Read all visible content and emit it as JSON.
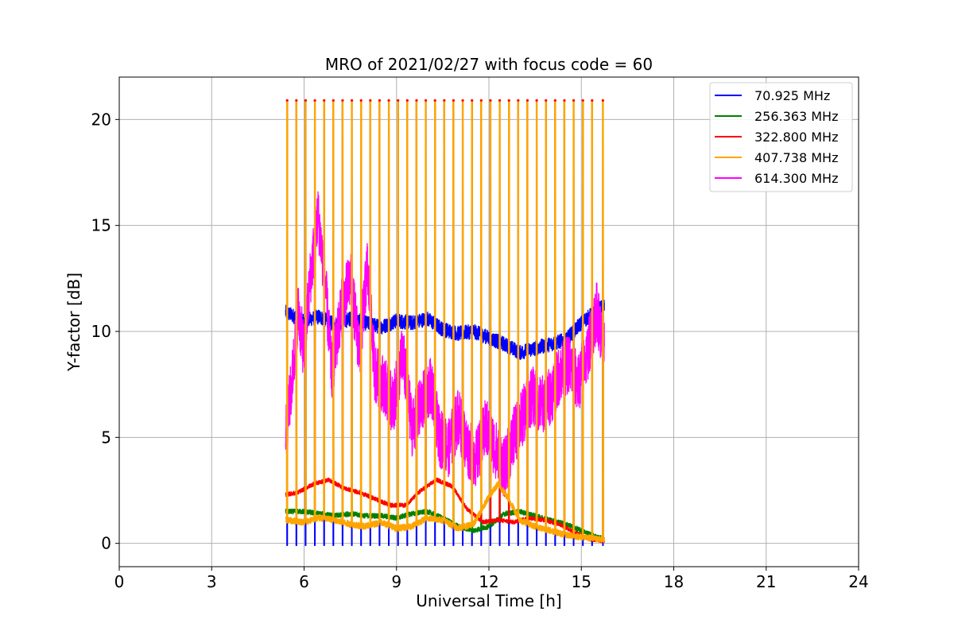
{
  "chart_data": {
    "type": "line",
    "title": "MRO of 2021/02/27 with focus code = 60",
    "xlabel": "Universal Time [h]",
    "ylabel": "Y-factor [dB]",
    "xlim": [
      0,
      24
    ],
    "ylim": [
      -1.1,
      22.0
    ],
    "xticks": [
      0,
      3,
      6,
      9,
      12,
      15,
      18,
      21,
      24
    ],
    "xtick_labels": [
      "0",
      "3",
      "6",
      "9",
      "12",
      "15",
      "18",
      "21",
      "24"
    ],
    "yticks": [
      0,
      5,
      10,
      15,
      20
    ],
    "ytick_labels": [
      "0",
      "5",
      "10",
      "15",
      "20"
    ],
    "grid": true,
    "legend_position": "top-right",
    "calibration_spikes": {
      "times": [
        5.45,
        5.75,
        6.05,
        6.35,
        6.65,
        6.95,
        7.25,
        7.55,
        7.85,
        8.15,
        8.45,
        8.75,
        9.05,
        9.35,
        9.65,
        9.95,
        10.25,
        10.55,
        10.85,
        11.15,
        11.45,
        11.75,
        12.05,
        12.35,
        12.65,
        12.95,
        13.25,
        13.55,
        13.85,
        14.15,
        14.45,
        14.75,
        15.05,
        15.35,
        15.7
      ],
      "peak_value": 20.9
    },
    "series": [
      {
        "name": "70.925 MHz",
        "color": "#0000ff",
        "x": [
          5.4,
          6.0,
          6.5,
          7.0,
          7.5,
          8.0,
          8.5,
          9.0,
          9.5,
          10.0,
          10.5,
          11.0,
          11.5,
          12.0,
          12.5,
          13.0,
          13.5,
          14.0,
          14.5,
          15.0,
          15.5,
          15.75
        ],
        "y": [
          10.9,
          10.5,
          10.7,
          10.3,
          10.6,
          10.4,
          10.2,
          10.5,
          10.4,
          10.6,
          10.1,
          9.9,
          10.0,
          9.7,
          9.4,
          9.0,
          9.2,
          9.4,
          9.6,
          10.4,
          11.0,
          11.2
        ],
        "noise": 0.35
      },
      {
        "name": "256.363 MHz",
        "color": "#008000",
        "x": [
          5.4,
          6.0,
          6.5,
          7.0,
          7.5,
          8.0,
          8.5,
          9.0,
          9.5,
          10.0,
          10.5,
          11.0,
          11.5,
          12.0,
          12.5,
          13.0,
          13.5,
          14.0,
          14.5,
          15.0,
          15.5,
          15.75
        ],
        "y": [
          1.5,
          1.5,
          1.4,
          1.3,
          1.4,
          1.3,
          1.3,
          1.2,
          1.4,
          1.5,
          1.2,
          0.8,
          0.6,
          0.8,
          1.4,
          1.5,
          1.3,
          1.1,
          0.9,
          0.6,
          0.3,
          0.2
        ],
        "noise": 0.12
      },
      {
        "name": "322.800 MHz",
        "color": "#ff0000",
        "x": [
          5.4,
          5.8,
          6.3,
          6.8,
          7.3,
          7.8,
          8.3,
          8.8,
          9.3,
          9.8,
          10.3,
          10.8,
          11.3,
          11.8,
          12.3,
          12.8,
          13.3,
          13.8,
          14.3,
          14.8,
          15.3,
          15.75
        ],
        "y": [
          2.3,
          2.4,
          2.8,
          3.0,
          2.6,
          2.4,
          2.1,
          1.8,
          1.8,
          2.5,
          3.0,
          2.7,
          1.6,
          1.0,
          1.1,
          1.0,
          1.2,
          1.1,
          0.9,
          0.5,
          0.2,
          0.1
        ],
        "noise": 0.1
      },
      {
        "name": "407.738 MHz",
        "color": "#ffa500",
        "x": [
          5.4,
          6.0,
          6.5,
          7.0,
          7.5,
          8.0,
          8.5,
          9.0,
          9.5,
          10.0,
          10.5,
          11.0,
          11.5,
          12.0,
          12.3,
          12.6,
          13.0,
          13.5,
          14.0,
          14.5,
          15.0,
          15.5,
          15.75
        ],
        "y": [
          1.1,
          1.0,
          1.2,
          1.1,
          0.9,
          0.8,
          1.0,
          0.7,
          0.8,
          1.2,
          1.1,
          0.7,
          0.9,
          2.2,
          2.8,
          2.2,
          1.1,
          0.8,
          0.6,
          0.4,
          0.3,
          0.2,
          0.2
        ],
        "noise": 0.15
      },
      {
        "name": "614.300 MHz",
        "color": "#ff00ff",
        "x": [
          5.4,
          5.6,
          5.8,
          6.0,
          6.2,
          6.45,
          6.7,
          6.9,
          7.2,
          7.5,
          7.8,
          8.05,
          8.3,
          8.6,
          8.9,
          9.2,
          9.5,
          9.8,
          10.1,
          10.4,
          10.7,
          11.0,
          11.3,
          11.6,
          11.9,
          12.2,
          12.5,
          12.8,
          13.1,
          13.4,
          13.7,
          14.0,
          14.3,
          14.6,
          14.9,
          15.2,
          15.5,
          15.75
        ],
        "y": [
          5.2,
          7.5,
          11.0,
          9.0,
          12.5,
          15.5,
          12.0,
          8.0,
          11.0,
          12.5,
          9.0,
          13.0,
          8.0,
          7.5,
          6.5,
          9.0,
          5.5,
          6.5,
          7.5,
          5.0,
          4.5,
          6.0,
          4.5,
          4.0,
          5.5,
          4.5,
          3.5,
          5.0,
          6.0,
          7.0,
          6.5,
          7.0,
          8.0,
          8.5,
          7.5,
          9.0,
          11.0,
          9.0
        ],
        "noise": 1.4
      }
    ]
  }
}
